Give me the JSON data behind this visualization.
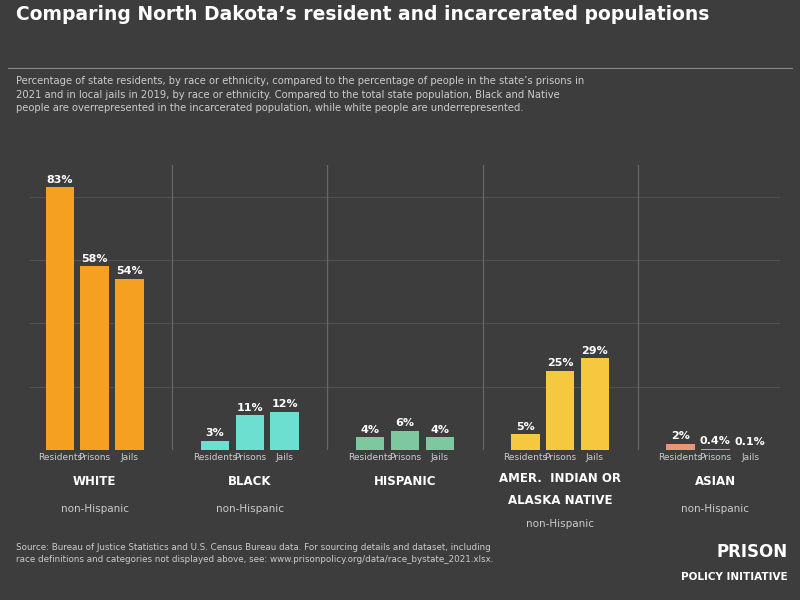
{
  "title": "Comparing North Dakota’s resident and incarcerated populations",
  "subtitle": "Percentage of state residents, by race or ethnicity, compared to the percentage of people in the state’s prisons in\n2021 and in local jails in 2019, by race or ethnicity. Compared to the total state population, Black and Native\npeople are overrepresented in the incarcerated population, while white people are underrepresented.",
  "source": "Source: Bureau of Justice Statistics and U.S. Census Bureau data. For sourcing details and dataset, including\nrace definitions and categories not displayed above, see: www.prisonpolicy.org/data/race_bystate_2021.xlsx.",
  "bg_color": "#3d3d3d",
  "groups": [
    {
      "label": "WHITE",
      "sublabel": "non-Hispanic",
      "bars": [
        {
          "cat": "Residents",
          "val": 83,
          "color": "#f5a020"
        },
        {
          "cat": "Prisons",
          "val": 58,
          "color": "#f5a020"
        },
        {
          "cat": "Jails",
          "val": 54,
          "color": "#f5a020"
        }
      ]
    },
    {
      "label": "BLACK",
      "sublabel": "non-Hispanic",
      "bars": [
        {
          "cat": "Residents",
          "val": 3,
          "color": "#6ddfd0"
        },
        {
          "cat": "Prisons",
          "val": 11,
          "color": "#6ddfd0"
        },
        {
          "cat": "Jails",
          "val": 12,
          "color": "#6ddfd0"
        }
      ]
    },
    {
      "label": "HISPANIC",
      "sublabel": "",
      "bars": [
        {
          "cat": "Residents",
          "val": 4,
          "color": "#7ec8a0"
        },
        {
          "cat": "Prisons",
          "val": 6,
          "color": "#7ec8a0"
        },
        {
          "cat": "Jails",
          "val": 4,
          "color": "#7ec8a0"
        }
      ]
    },
    {
      "label": "AMER.  INDIAN OR\nALASKA NATIVE",
      "sublabel": "non-Hispanic",
      "bars": [
        {
          "cat": "Residents",
          "val": 5,
          "color": "#f5c840"
        },
        {
          "cat": "Prisons",
          "val": 25,
          "color": "#f5c840"
        },
        {
          "cat": "Jails",
          "val": 29,
          "color": "#f5c840"
        }
      ]
    },
    {
      "label": "ASIAN",
      "sublabel": "non-Hispanic",
      "bars": [
        {
          "cat": "Residents",
          "val": 2,
          "color": "#e8967a"
        },
        {
          "cat": "Prisons",
          "val": 0.4,
          "color": "#e8967a"
        },
        {
          "cat": "Jails",
          "val": 0.1,
          "color": "#e8967a"
        }
      ]
    }
  ],
  "ylim": [
    0,
    90
  ],
  "text_color": "#ffffff",
  "label_color": "#cccccc",
  "grid_color": "#555555",
  "divider_color": "#666666",
  "logo_line1": "PRISON",
  "logo_line2": "POLICY INITIATIVE"
}
